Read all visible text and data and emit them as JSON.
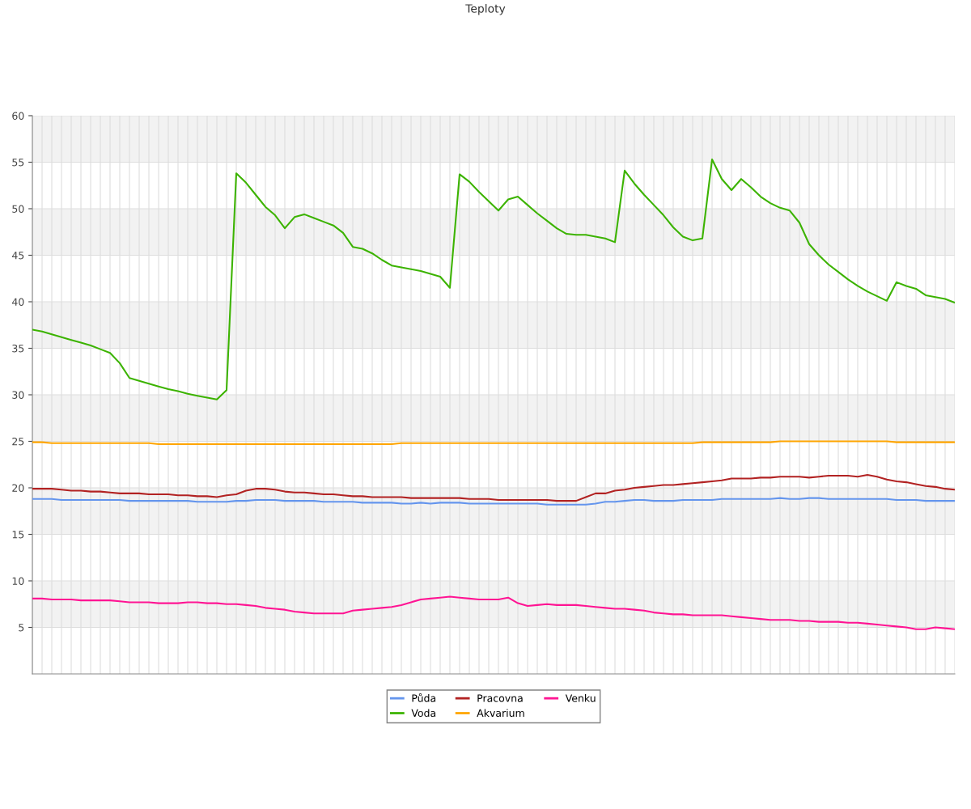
{
  "chart_data": {
    "type": "line",
    "title": "Teploty",
    "categories": [
      null,
      null,
      null,
      null,
      null,
      null,
      null,
      null,
      null,
      null,
      null,
      null,
      null,
      null,
      null,
      null,
      null,
      null,
      null,
      null,
      null,
      null,
      null,
      null,
      null,
      null,
      null,
      null,
      null,
      null,
      null,
      null,
      null,
      null,
      null,
      null,
      null,
      null,
      null,
      null,
      null,
      null,
      null,
      null,
      null,
      null,
      null,
      null,
      null,
      null,
      null,
      null,
      null,
      null,
      null,
      null,
      null,
      null,
      null,
      null,
      null,
      null,
      null,
      null,
      null,
      null,
      null,
      null,
      null,
      null,
      null,
      null,
      null,
      null,
      null,
      null,
      null,
      null,
      null,
      null,
      null,
      null,
      null,
      null,
      null,
      null,
      null,
      null,
      null,
      null,
      null,
      null,
      null,
      null,
      null,
      null
    ],
    "series": [
      {
        "name": "Půda",
        "color": "#6495ed",
        "values": [
          18.8,
          18.8,
          18.8,
          18.7,
          18.7,
          18.7,
          18.7,
          18.7,
          18.7,
          18.7,
          18.6,
          18.6,
          18.6,
          18.6,
          18.6,
          18.6,
          18.6,
          18.5,
          18.5,
          18.5,
          18.5,
          18.6,
          18.6,
          18.7,
          18.7,
          18.7,
          18.6,
          18.6,
          18.6,
          18.6,
          18.5,
          18.5,
          18.5,
          18.5,
          18.4,
          18.4,
          18.4,
          18.4,
          18.3,
          18.3,
          18.4,
          18.3,
          18.4,
          18.4,
          18.4,
          18.3,
          18.3,
          18.3,
          18.3,
          18.3,
          18.3,
          18.3,
          18.3,
          18.2,
          18.2,
          18.2,
          18.2,
          18.2,
          18.3,
          18.5,
          18.5,
          18.6,
          18.7,
          18.7,
          18.6,
          18.6,
          18.6,
          18.7,
          18.7,
          18.7,
          18.7,
          18.8,
          18.8,
          18.8,
          18.8,
          18.8,
          18.8,
          18.9,
          18.8,
          18.8,
          18.9,
          18.9,
          18.8,
          18.8,
          18.8,
          18.8,
          18.8,
          18.8,
          18.8,
          18.7,
          18.7,
          18.7,
          18.6,
          18.6,
          18.6,
          18.6
        ]
      },
      {
        "name": "Voda",
        "color": "#3cb300",
        "values": [
          37.0,
          36.8,
          36.5,
          36.2,
          35.9,
          35.6,
          35.3,
          34.9,
          34.5,
          33.4,
          31.8,
          31.5,
          31.2,
          30.9,
          30.6,
          30.4,
          30.1,
          29.9,
          29.7,
          29.5,
          30.5,
          53.8,
          52.8,
          51.5,
          50.2,
          49.3,
          47.9,
          49.1,
          49.4,
          49.0,
          48.6,
          48.2,
          47.4,
          45.9,
          45.7,
          45.2,
          44.5,
          43.9,
          43.7,
          43.5,
          43.3,
          43.0,
          42.7,
          41.5,
          53.7,
          52.9,
          51.8,
          50.8,
          49.8,
          51.0,
          51.3,
          50.4,
          49.5,
          48.7,
          47.9,
          47.3,
          47.2,
          47.2,
          47.0,
          46.8,
          46.4,
          54.1,
          52.7,
          51.5,
          50.4,
          49.3,
          48.0,
          47.0,
          46.6,
          46.8,
          55.3,
          53.2,
          52.0,
          53.2,
          52.3,
          51.3,
          50.6,
          50.1,
          49.8,
          48.5,
          46.2,
          45.0,
          44.0,
          43.2,
          42.4,
          41.7,
          41.1,
          40.6,
          40.1,
          42.1,
          41.7,
          41.4,
          40.7,
          40.5,
          40.3,
          39.9
        ]
      },
      {
        "name": "Pracovna",
        "color": "#b22222",
        "values": [
          19.9,
          19.9,
          19.9,
          19.8,
          19.7,
          19.7,
          19.6,
          19.6,
          19.5,
          19.4,
          19.4,
          19.4,
          19.3,
          19.3,
          19.3,
          19.2,
          19.2,
          19.1,
          19.1,
          19.0,
          19.2,
          19.3,
          19.7,
          19.9,
          19.9,
          19.8,
          19.6,
          19.5,
          19.5,
          19.4,
          19.3,
          19.3,
          19.2,
          19.1,
          19.1,
          19.0,
          19.0,
          19.0,
          19.0,
          18.9,
          18.9,
          18.9,
          18.9,
          18.9,
          18.9,
          18.8,
          18.8,
          18.8,
          18.7,
          18.7,
          18.7,
          18.7,
          18.7,
          18.7,
          18.6,
          18.6,
          18.6,
          19.0,
          19.4,
          19.4,
          19.7,
          19.8,
          20.0,
          20.1,
          20.2,
          20.3,
          20.3,
          20.4,
          20.5,
          20.6,
          20.7,
          20.8,
          21.0,
          21.0,
          21.0,
          21.1,
          21.1,
          21.2,
          21.2,
          21.2,
          21.1,
          21.2,
          21.3,
          21.3,
          21.3,
          21.2,
          21.4,
          21.2,
          20.9,
          20.7,
          20.6,
          20.4,
          20.2,
          20.1,
          19.9,
          19.8
        ]
      },
      {
        "name": "Akvarium",
        "color": "#ffa500",
        "values": [
          24.9,
          24.9,
          24.8,
          24.8,
          24.8,
          24.8,
          24.8,
          24.8,
          24.8,
          24.8,
          24.8,
          24.8,
          24.8,
          24.7,
          24.7,
          24.7,
          24.7,
          24.7,
          24.7,
          24.7,
          24.7,
          24.7,
          24.7,
          24.7,
          24.7,
          24.7,
          24.7,
          24.7,
          24.7,
          24.7,
          24.7,
          24.7,
          24.7,
          24.7,
          24.7,
          24.7,
          24.7,
          24.7,
          24.8,
          24.8,
          24.8,
          24.8,
          24.8,
          24.8,
          24.8,
          24.8,
          24.8,
          24.8,
          24.8,
          24.8,
          24.8,
          24.8,
          24.8,
          24.8,
          24.8,
          24.8,
          24.8,
          24.8,
          24.8,
          24.8,
          24.8,
          24.8,
          24.8,
          24.8,
          24.8,
          24.8,
          24.8,
          24.8,
          24.8,
          24.9,
          24.9,
          24.9,
          24.9,
          24.9,
          24.9,
          24.9,
          24.9,
          25.0,
          25.0,
          25.0,
          25.0,
          25.0,
          25.0,
          25.0,
          25.0,
          25.0,
          25.0,
          25.0,
          25.0,
          24.9,
          24.9,
          24.9,
          24.9,
          24.9,
          24.9,
          24.9
        ]
      },
      {
        "name": "Venku",
        "color": "#ff1493",
        "values": [
          8.1,
          8.1,
          8.0,
          8.0,
          8.0,
          7.9,
          7.9,
          7.9,
          7.9,
          7.8,
          7.7,
          7.7,
          7.7,
          7.6,
          7.6,
          7.6,
          7.7,
          7.7,
          7.6,
          7.6,
          7.5,
          7.5,
          7.4,
          7.3,
          7.1,
          7.0,
          6.9,
          6.7,
          6.6,
          6.5,
          6.5,
          6.5,
          6.5,
          6.8,
          6.9,
          7.0,
          7.1,
          7.2,
          7.4,
          7.7,
          8.0,
          8.1,
          8.2,
          8.3,
          8.2,
          8.1,
          8.0,
          8.0,
          8.0,
          8.2,
          7.6,
          7.3,
          7.4,
          7.5,
          7.4,
          7.4,
          7.4,
          7.3,
          7.2,
          7.1,
          7.0,
          7.0,
          6.9,
          6.8,
          6.6,
          6.5,
          6.4,
          6.4,
          6.3,
          6.3,
          6.3,
          6.3,
          6.2,
          6.1,
          6.0,
          5.9,
          5.8,
          5.8,
          5.8,
          5.7,
          5.7,
          5.6,
          5.6,
          5.6,
          5.5,
          5.5,
          5.4,
          5.3,
          5.2,
          5.1,
          5.0,
          4.8,
          4.8,
          5.0,
          4.9,
          4.8
        ]
      }
    ],
    "ylim": [
      0,
      60
    ],
    "yticks": [
      5,
      10,
      15,
      20,
      25,
      30,
      35,
      40,
      45,
      50,
      55,
      60
    ],
    "bands": [
      {
        "axis": "y",
        "from": 5,
        "to": 10,
        "color": "#f2f2f2"
      },
      {
        "axis": "y",
        "from": 15,
        "to": 20,
        "color": "#f2f2f2"
      },
      {
        "axis": "y",
        "from": 25,
        "to": 30,
        "color": "#f2f2f2"
      },
      {
        "axis": "y",
        "from": 35,
        "to": 40,
        "color": "#f2f2f2"
      },
      {
        "axis": "y",
        "from": 45,
        "to": 50,
        "color": "#f2f2f2"
      },
      {
        "axis": "y",
        "from": 55,
        "to": 60,
        "color": "#f2f2f2"
      }
    ],
    "grid": true,
    "legend": "bottom",
    "marker": "none",
    "line_style": "solid"
  }
}
